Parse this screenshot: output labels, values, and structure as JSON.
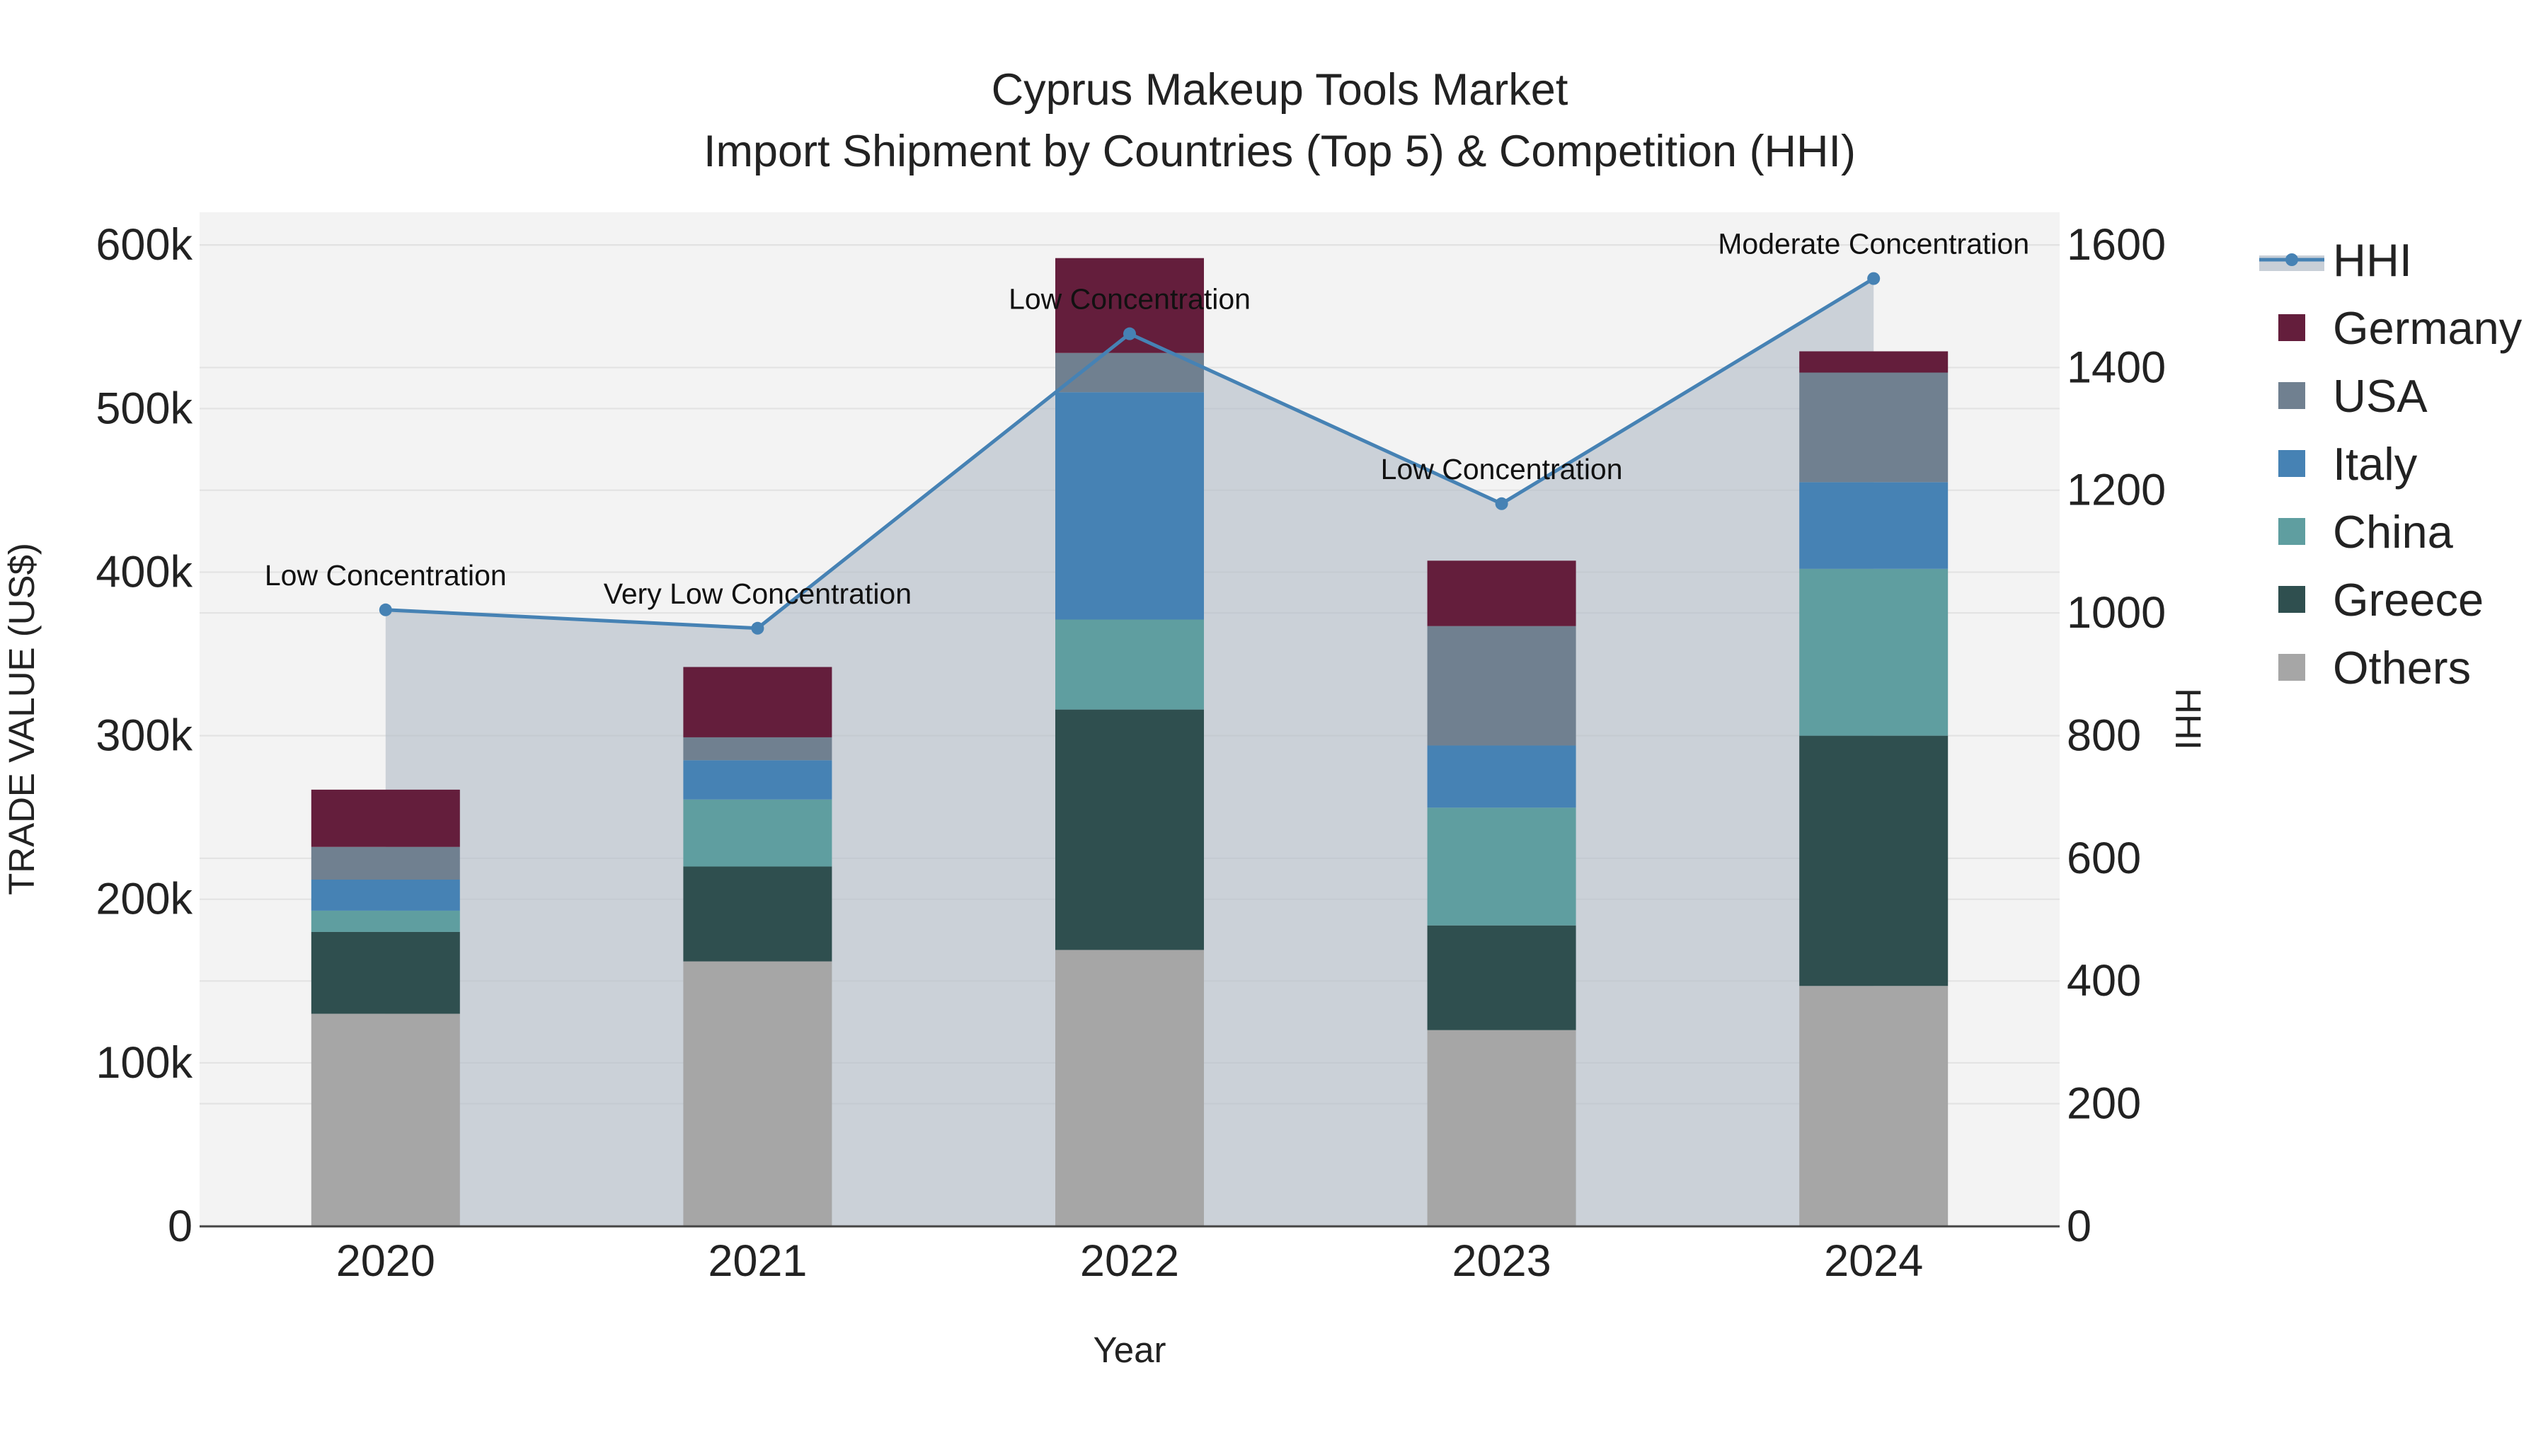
{
  "chart_data": {
    "type": "bar",
    "title": "Cyprus Makeup Tools Market",
    "subtitle": "Import Shipment by Countries (Top 5) & Competition (HHI)",
    "xlabel": "Year",
    "ylabel": "TRADE VALUE (US$)",
    "y2label": "HHI",
    "categories": [
      "2020",
      "2021",
      "2022",
      "2023",
      "2024"
    ],
    "ylim": [
      0,
      620000
    ],
    "y2lim": [
      0,
      1653
    ],
    "yticks": [
      0,
      100000,
      200000,
      300000,
      400000,
      500000,
      600000
    ],
    "ytick_labels": [
      "0",
      "100k",
      "200k",
      "300k",
      "400k",
      "500k",
      "600k"
    ],
    "y2ticks": [
      0,
      200,
      400,
      600,
      800,
      1000,
      1200,
      1400,
      1600
    ],
    "y2tick_labels": [
      "0",
      "200",
      "400",
      "600",
      "800",
      "1000",
      "1200",
      "1400",
      "1600"
    ],
    "series": [
      {
        "name": "Others",
        "color": "#a6a6a6",
        "values": [
          130000,
          162000,
          169000,
          120000,
          147000
        ]
      },
      {
        "name": "Greece",
        "color": "#2f4f4f",
        "values": [
          50000,
          58000,
          147000,
          64000,
          153000
        ]
      },
      {
        "name": "China",
        "color": "#5f9ea0",
        "values": [
          13000,
          41000,
          55000,
          72000,
          102000
        ]
      },
      {
        "name": "Italy",
        "color": "#4682b4",
        "values": [
          19000,
          24000,
          139000,
          38000,
          53000
        ]
      },
      {
        "name": "USA",
        "color": "#708090",
        "values": [
          20000,
          14000,
          24000,
          73000,
          67000
        ]
      },
      {
        "name": "Germany",
        "color": "#641e3c",
        "values": [
          35000,
          43000,
          58000,
          40000,
          13000
        ]
      }
    ],
    "hhi": {
      "name": "HHI",
      "color": "#4682b4",
      "values": [
        1005,
        975,
        1455,
        1178,
        1545
      ],
      "annotations": [
        "Low Concentration",
        "Very Low Concentration",
        "Low Concentration",
        "Low Concentration",
        "Moderate Concentration"
      ]
    },
    "legend": [
      "HHI",
      "Germany",
      "USA",
      "Italy",
      "China",
      "Greece",
      "Others"
    ],
    "legend_position": "top-right",
    "grid": true
  }
}
